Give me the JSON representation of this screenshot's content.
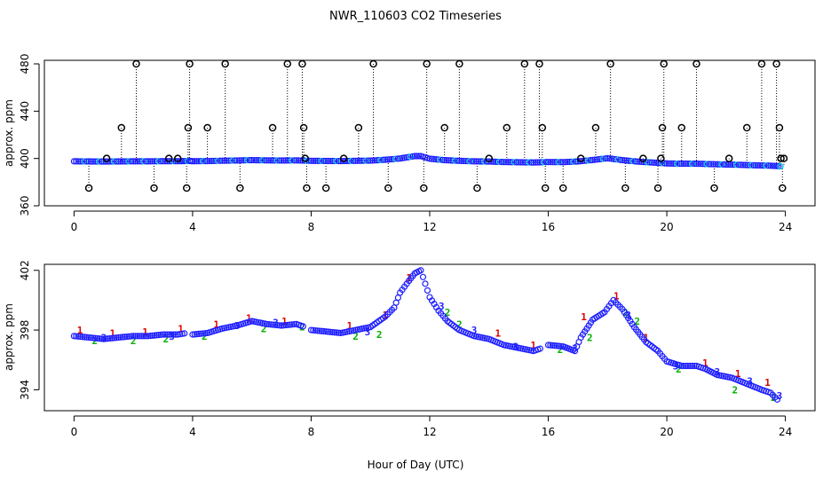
{
  "colors": {
    "blue": "#1f1fff",
    "cyan": "#00c8d8",
    "red": "#e00000",
    "green": "#00b000",
    "black": "#000000"
  },
  "chart_data": {
    "title": "NWR_110603  CO2 Timeseries",
    "xlabel": "Hour of Day (UTC)",
    "x_ticks": [
      0,
      4,
      8,
      12,
      16,
      20,
      24
    ],
    "panels": [
      {
        "name": "all-data",
        "type": "scatter",
        "ylabel": "approx. ppm",
        "xlim": [
          -1,
          25
        ],
        "ylim": [
          360,
          483
        ],
        "y_ticks": [
          360,
          400,
          440,
          480
        ],
        "baseline_series": {
          "name": "CO2 1-minute",
          "x": [
            0,
            0.5,
            1,
            1.5,
            2,
            2.5,
            3,
            3.5,
            3.9,
            4,
            4.5,
            5,
            5.5,
            6,
            6.5,
            7,
            7.5,
            8,
            8.5,
            9,
            9.5,
            10,
            10.5,
            11,
            11.5,
            11.7,
            12,
            12.5,
            13,
            13.5,
            14,
            14.5,
            15,
            15.5,
            16,
            16.5,
            17,
            17.5,
            18,
            18.5,
            19,
            19.5,
            20,
            20.5,
            21,
            21.5,
            22,
            22.5,
            23,
            23.5,
            23.9
          ],
          "y": [
            397.6,
            397.5,
            397.4,
            397.5,
            397.6,
            397.6,
            397.7,
            397.7,
            397.9,
            397.7,
            397.8,
            398.1,
            398.3,
            398.6,
            398.4,
            398.3,
            398.4,
            398.0,
            397.9,
            397.8,
            398.0,
            398.2,
            398.9,
            400.0,
            402.0,
            402.0,
            399.8,
            398.6,
            398.0,
            397.6,
            397.4,
            397.0,
            396.8,
            396.6,
            397.0,
            396.9,
            397.5,
            398.7,
            400.2,
            398.6,
            397.4,
            396.6,
            395.8,
            395.6,
            395.6,
            395.2,
            394.9,
            394.6,
            394.2,
            393.9,
            393.3
          ]
        },
        "flagged_points": {
          "name": "flagged samples",
          "x": [
            0.5,
            1.1,
            1.6,
            2.1,
            2.7,
            3.2,
            3.5,
            3.8,
            3.85,
            3.9,
            4.5,
            5.1,
            5.6,
            6.7,
            7.2,
            7.7,
            7.75,
            7.8,
            7.85,
            8.5,
            9.1,
            9.6,
            10.1,
            10.6,
            11.8,
            11.9,
            12.5,
            13.0,
            13.6,
            14.0,
            14.6,
            15.2,
            15.7,
            15.8,
            15.9,
            16.5,
            17.1,
            17.6,
            18.1,
            18.6,
            19.2,
            19.7,
            19.8,
            19.85,
            19.9,
            20.5,
            21.0,
            21.6,
            22.1,
            22.7,
            23.2,
            23.7,
            23.8,
            23.85,
            23.9,
            23.95
          ],
          "y": [
            375,
            400,
            426,
            480,
            375,
            400,
            400,
            375,
            426,
            480,
            426,
            480,
            375,
            426,
            480,
            480,
            426,
            400,
            375,
            375,
            400,
            426,
            480,
            375,
            375,
            480,
            426,
            480,
            375,
            400,
            426,
            480,
            480,
            426,
            375,
            375,
            400,
            426,
            480,
            375,
            400,
            375,
            400,
            426,
            480,
            426,
            480,
            375,
            400,
            426,
            480,
            480,
            426,
            400,
            375,
            400
          ]
        }
      },
      {
        "name": "zoomed-data",
        "type": "scatter",
        "ylabel": "approx. ppm",
        "xlim": [
          -1,
          25
        ],
        "ylim": [
          392.6,
          402.4
        ],
        "y_ticks": [
          394,
          398,
          402
        ],
        "y_tick_labels": [
          "394",
          "398",
          "402"
        ],
        "series": [
          {
            "name": "flag 1",
            "marker": "1",
            "x": [
              0.2,
              1.3,
              2.4,
              3.6,
              4.8,
              5.9,
              7.1,
              9.3,
              10.5,
              11.3,
              14.3,
              15.5,
              17.2,
              18.3,
              19.3,
              21.3,
              22.4,
              23.4
            ],
            "y": [
              398.0,
              397.8,
              397.9,
              398.1,
              398.4,
              398.8,
              398.6,
              398.3,
              399.0,
              401.5,
              397.8,
              397.0,
              398.9,
              400.3,
              397.5,
              395.8,
              395.1,
              394.5
            ]
          },
          {
            "name": "flag 2",
            "marker": "2",
            "x": [
              0.7,
              2.0,
              3.1,
              4.4,
              6.4,
              7.7,
              9.5,
              10.3,
              12.6,
              13.0,
              16.4,
              17.4,
              18.6,
              19.0,
              20.4,
              22.3,
              23.6
            ],
            "y": [
              397.3,
              397.3,
              397.4,
              397.6,
              398.1,
              398.2,
              397.6,
              397.7,
              399.2,
              398.4,
              396.7,
              397.5,
              399.2,
              398.6,
              395.4,
              394.0,
              393.5
            ]
          },
          {
            "name": "flag 3",
            "marker": "3",
            "x": [
              1.0,
              3.3,
              5.5,
              6.8,
              9.9,
              12.4,
              13.5,
              14.9,
              16.9,
              18.7,
              20.3,
              21.7,
              22.8,
              23.8
            ],
            "y": [
              397.5,
              397.6,
              398.3,
              398.5,
              397.9,
              399.6,
              398.0,
              396.9,
              396.8,
              399.0,
              395.6,
              395.2,
              394.6,
              393.6
            ]
          }
        ],
        "points_series": {
          "name": "CO2 1-minute",
          "marker": "o",
          "x": [
            0,
            0.5,
            1,
            1.5,
            2,
            2.5,
            3,
            3.5,
            3.8,
            4,
            4.5,
            5,
            5.5,
            6,
            6.5,
            7,
            7.5,
            7.8,
            8,
            8.5,
            9,
            9.5,
            10,
            10.5,
            10.8,
            11,
            11.3,
            11.5,
            11.7,
            12,
            12.3,
            12.6,
            13,
            13.5,
            14,
            14.5,
            15,
            15.5,
            15.8,
            16,
            16.5,
            16.9,
            17.1,
            17.5,
            17.9,
            18.2,
            18.5,
            18.9,
            19.3,
            19.7,
            20,
            20.5,
            21,
            21.3,
            21.7,
            22.2,
            22.7,
            23.2,
            23.5,
            23.8
          ],
          "y": [
            397.6,
            397.5,
            397.4,
            397.5,
            397.6,
            397.6,
            397.7,
            397.7,
            397.8,
            397.7,
            397.8,
            398.1,
            398.3,
            398.6,
            398.4,
            398.3,
            398.4,
            398.2,
            398.0,
            397.9,
            397.8,
            398.0,
            398.2,
            398.9,
            399.5,
            400.5,
            401.3,
            401.8,
            402.0,
            400.2,
            399.3,
            398.6,
            398.0,
            397.6,
            397.4,
            397.0,
            396.8,
            396.6,
            396.8,
            397.0,
            396.9,
            396.6,
            397.5,
            398.7,
            399.2,
            400.0,
            399.4,
            398.2,
            397.2,
            396.6,
            395.9,
            395.6,
            395.6,
            395.4,
            395.0,
            394.8,
            394.4,
            394.0,
            393.8,
            393.2
          ]
        }
      }
    ]
  }
}
